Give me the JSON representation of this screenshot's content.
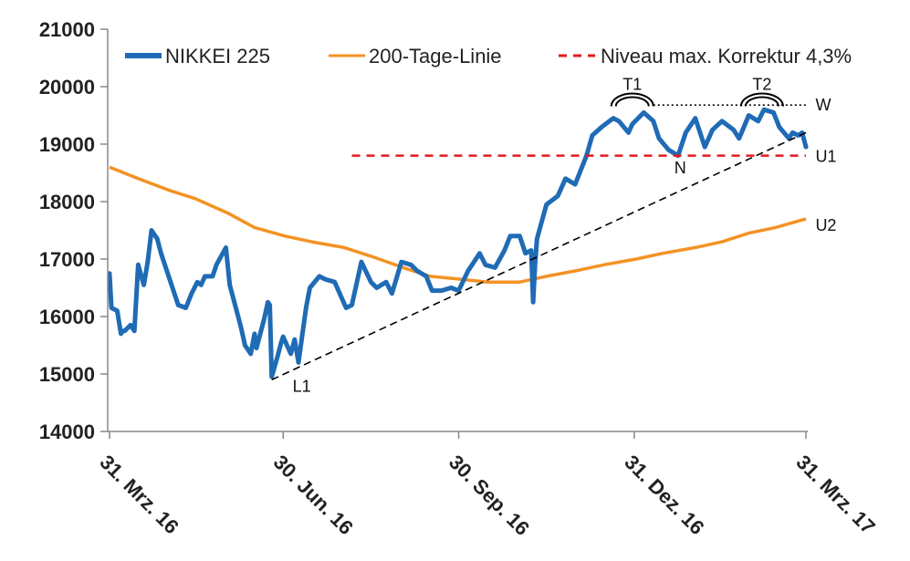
{
  "chart_data": {
    "type": "line",
    "title": "",
    "xlabel": "",
    "ylabel": "",
    "ylim": [
      14000,
      21000
    ],
    "y_ticks": [
      "21000",
      "20000",
      "19000",
      "18000",
      "17000",
      "16000",
      "15000",
      "14000"
    ],
    "x_ticks": [
      "31. Mrz. 16",
      "30. Jun. 16",
      "30. Sep. 16",
      "31. Dez. 16",
      "31. Mrz. 17"
    ],
    "grid": false,
    "legend_position": "top",
    "colors": {
      "nikkei": "#1f6bb5",
      "ma200": "#f39224",
      "level": "#e31a1c",
      "trend": "#000000",
      "axis": "#888888"
    },
    "series": [
      {
        "name": "NIKKEI 225",
        "style": "thick-line",
        "x": [
          "2016-03-31",
          "2016-04-01",
          "2016-04-04",
          "2016-04-06",
          "2016-04-07",
          "2016-04-08",
          "2016-04-11",
          "2016-04-13",
          "2016-04-15",
          "2016-04-18",
          "2016-04-20",
          "2016-04-22",
          "2016-04-25",
          "2016-04-27",
          "2016-05-02",
          "2016-05-06",
          "2016-05-10",
          "2016-05-13",
          "2016-05-16",
          "2016-05-18",
          "2016-05-20",
          "2016-05-24",
          "2016-05-26",
          "2016-05-31",
          "2016-06-02",
          "2016-06-06",
          "2016-06-08",
          "2016-06-10",
          "2016-06-13",
          "2016-06-15",
          "2016-06-16",
          "2016-06-20",
          "2016-06-22",
          "2016-06-23",
          "2016-06-24",
          "2016-06-27",
          "2016-06-29",
          "2016-06-30",
          "2016-07-04",
          "2016-07-06",
          "2016-07-08",
          "2016-07-12",
          "2016-07-14",
          "2016-07-19",
          "2016-07-22",
          "2016-07-27",
          "2016-07-29",
          "2016-08-02",
          "2016-08-05",
          "2016-08-10",
          "2016-08-15",
          "2016-08-18",
          "2016-08-23",
          "2016-08-26",
          "2016-08-31",
          "2016-09-05",
          "2016-09-08",
          "2016-09-13",
          "2016-09-16",
          "2016-09-21",
          "2016-09-26",
          "2016-09-30",
          "2016-10-05",
          "2016-10-11",
          "2016-10-14",
          "2016-10-19",
          "2016-10-24",
          "2016-10-27",
          "2016-11-01",
          "2016-11-04",
          "2016-11-07",
          "2016-11-08",
          "2016-11-09",
          "2016-11-10",
          "2016-11-15",
          "2016-11-21",
          "2016-11-25",
          "2016-11-30",
          "2016-12-06",
          "2016-12-09",
          "2016-12-14",
          "2016-12-20",
          "2016-12-23",
          "2016-12-28",
          "2016-12-30",
          "2017-01-05",
          "2017-01-10",
          "2017-01-13",
          "2017-01-18",
          "2017-01-23",
          "2017-01-27",
          "2017-02-01",
          "2017-02-06",
          "2017-02-10",
          "2017-02-15",
          "2017-02-21",
          "2017-02-24",
          "2017-03-01",
          "2017-03-06",
          "2017-03-09",
          "2017-03-14",
          "2017-03-17",
          "2017-03-22",
          "2017-03-24",
          "2017-03-27",
          "2017-03-29",
          "2017-03-31"
        ],
        "values": [
          16750,
          16150,
          16100,
          15700,
          15750,
          15750,
          15850,
          15750,
          16900,
          16550,
          16950,
          17500,
          17350,
          17100,
          16600,
          16200,
          16150,
          16400,
          16600,
          16550,
          16700,
          16700,
          16900,
          17200,
          16550,
          16050,
          15800,
          15500,
          15350,
          15700,
          15450,
          15950,
          16250,
          16200,
          14950,
          15300,
          15550,
          15650,
          15350,
          15600,
          15200,
          16150,
          16500,
          16700,
          16650,
          16600,
          16450,
          16150,
          16200,
          16950,
          16600,
          16500,
          16600,
          16400,
          16950,
          16900,
          16800,
          16700,
          16450,
          16450,
          16500,
          16450,
          16800,
          17100,
          16900,
          16850,
          17150,
          17400,
          17400,
          17100,
          17150,
          16250,
          16900,
          17350,
          17950,
          18100,
          18400,
          18300,
          18800,
          19150,
          19300,
          19450,
          19400,
          19200,
          19350,
          19550,
          19400,
          19100,
          18900,
          18800,
          19200,
          19450,
          18950,
          19250,
          19400,
          19250,
          19100,
          19500,
          19400,
          19600,
          19550,
          19300,
          19100,
          19200,
          19150,
          19200,
          18950
        ]
      },
      {
        "name": "200-Tage-Linie",
        "style": "line",
        "x": [
          "2016-03-31",
          "2016-04-15",
          "2016-05-01",
          "2016-05-15",
          "2016-06-01",
          "2016-06-15",
          "2016-07-01",
          "2016-07-15",
          "2016-08-01",
          "2016-08-15",
          "2016-09-01",
          "2016-09-15",
          "2016-10-01",
          "2016-10-15",
          "2016-11-01",
          "2016-11-15",
          "2016-12-01",
          "2016-12-15",
          "2017-01-01",
          "2017-01-15",
          "2017-02-01",
          "2017-02-15",
          "2017-03-01",
          "2017-03-15",
          "2017-03-31"
        ],
        "values": [
          18600,
          18400,
          18200,
          18050,
          17800,
          17550,
          17400,
          17300,
          17200,
          17050,
          16850,
          16700,
          16650,
          16600,
          16600,
          16700,
          16800,
          16900,
          17000,
          17100,
          17200,
          17300,
          17450,
          17550,
          17700
        ]
      },
      {
        "name": "Niveau max. Korrektur 4,3%",
        "style": "dashed",
        "x": [
          "2016-08-05",
          "2017-03-31"
        ],
        "values": [
          18800,
          18800
        ]
      },
      {
        "name": "",
        "style": "dashed-trendline",
        "x": [
          "2016-06-24",
          "2017-03-31"
        ],
        "values": [
          14900,
          19200
        ]
      },
      {
        "name": "",
        "style": "dotted",
        "x": [
          "2017-01-10",
          "2017-03-31"
        ],
        "values": [
          19680,
          19680
        ]
      }
    ],
    "annotations": [
      {
        "label": "T1",
        "x": "2016-12-30",
        "y": 19850,
        "shape": "arc"
      },
      {
        "label": "T2",
        "x": "2017-03-08",
        "y": 19850,
        "shape": "arc"
      },
      {
        "label": "W",
        "x": "2017-04-05",
        "y": 19700
      },
      {
        "label": "U1",
        "x": "2017-04-05",
        "y": 18800
      },
      {
        "label": "U2",
        "x": "2017-04-05",
        "y": 17600
      },
      {
        "label": "N",
        "x": "2017-01-21",
        "y": 18600
      },
      {
        "label": "L1",
        "x": "2016-07-05",
        "y": 14800
      }
    ]
  }
}
